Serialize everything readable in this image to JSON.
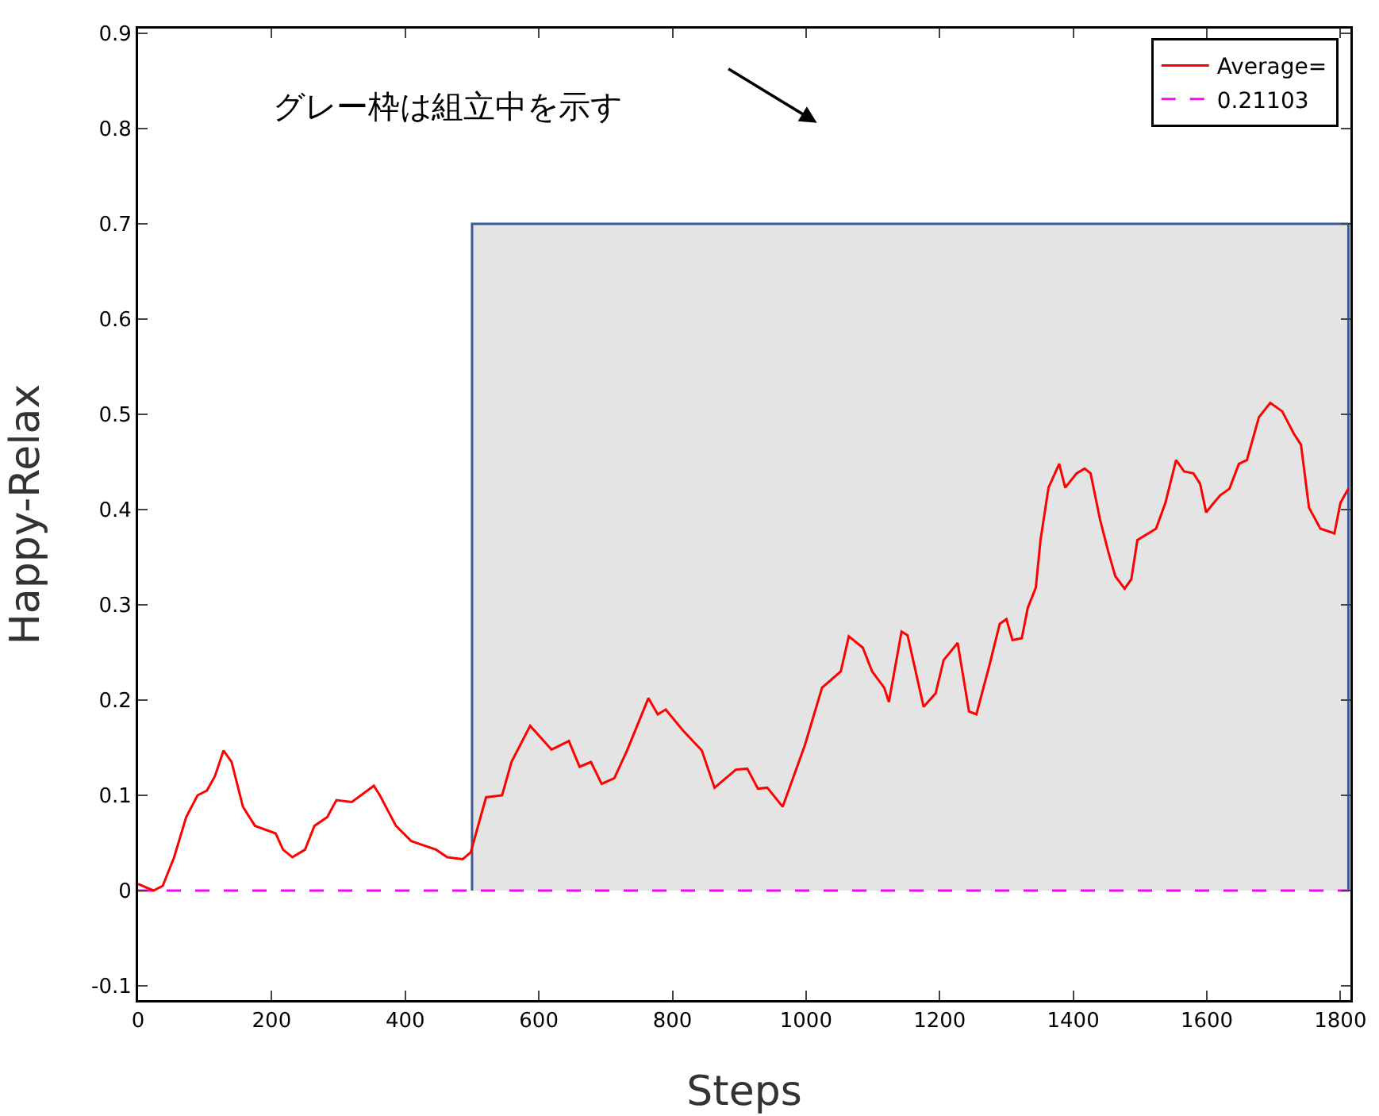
{
  "chart_data": {
    "type": "line",
    "xlabel": "Steps",
    "ylabel": "Happy-Relax",
    "xlim": [
      0,
      1815
    ],
    "xticks": [
      0,
      200,
      400,
      600,
      800,
      1000,
      1200,
      1400,
      1600,
      1800
    ],
    "ylim": [
      -0.115,
      0.905
    ],
    "yticks": [
      -0.1,
      0,
      0.1,
      0.2,
      0.3,
      0.4,
      0.5,
      0.6,
      0.7,
      0.8,
      0.9
    ],
    "grid": false,
    "legend": "top right",
    "marker": "none",
    "annotations": [
      "グレー枠は組立中を示す"
    ],
    "series": [
      {
        "type": "area",
        "color": "#e4e4e4",
        "x": [
          500,
          500,
          1812,
          1812
        ],
        "values": [
          0,
          0.7,
          0.7,
          0
        ]
      },
      {
        "name": "0.21103",
        "color": "#ff00ff",
        "line_style": "dashed",
        "x": [
          0,
          1812
        ],
        "values": [
          0,
          0
        ]
      },
      {
        "name": "Average=",
        "color": "#ff0000",
        "line_style": "solid",
        "x": [
          0,
          23,
          37,
          54,
          72,
          89,
          103,
          115,
          128,
          140,
          157,
          175,
          206,
          217,
          231,
          250,
          264,
          283,
          297,
          320,
          353,
          362,
          386,
          409,
          446,
          463,
          486,
          498,
          521,
          545,
          559,
          587,
          619,
          645,
          661,
          678,
          694,
          713,
          732,
          764,
          778,
          790,
          816,
          844,
          863,
          895,
          912,
          928,
          942,
          965,
          998,
          1024,
          1052,
          1064,
          1085,
          1099,
          1117,
          1124,
          1143,
          1152,
          1176,
          1194,
          1206,
          1227,
          1244,
          1255,
          1274,
          1290,
          1300,
          1309,
          1323,
          1332,
          1344,
          1351,
          1363,
          1379,
          1388,
          1405,
          1417,
          1426,
          1440,
          1452,
          1463,
          1477,
          1487,
          1496,
          1524,
          1538,
          1554,
          1566,
          1580,
          1590,
          1599,
          1608,
          1620,
          1634,
          1648,
          1660,
          1678,
          1695,
          1713,
          1730,
          1741,
          1753,
          1770,
          1791,
          1800,
          1812
        ],
        "values": [
          0.007,
          0,
          0.005,
          0.035,
          0.077,
          0.1,
          0.105,
          0.12,
          0.147,
          0.135,
          0.088,
          0.068,
          0.06,
          0.043,
          0.035,
          0.043,
          0.068,
          0.077,
          0.095,
          0.093,
          0.11,
          0.1,
          0.068,
          0.052,
          0.043,
          0.035,
          0.033,
          0.04,
          0.098,
          0.1,
          0.135,
          0.173,
          0.148,
          0.157,
          0.13,
          0.135,
          0.112,
          0.118,
          0.147,
          0.202,
          0.185,
          0.19,
          0.168,
          0.147,
          0.108,
          0.127,
          0.128,
          0.107,
          0.108,
          0.088,
          0.152,
          0.213,
          0.23,
          0.267,
          0.255,
          0.23,
          0.213,
          0.198,
          0.272,
          0.268,
          0.193,
          0.207,
          0.242,
          0.26,
          0.188,
          0.185,
          0.235,
          0.28,
          0.285,
          0.263,
          0.265,
          0.297,
          0.318,
          0.368,
          0.423,
          0.448,
          0.423,
          0.438,
          0.443,
          0.438,
          0.39,
          0.357,
          0.33,
          0.317,
          0.327,
          0.368,
          0.38,
          0.407,
          0.452,
          0.44,
          0.438,
          0.427,
          0.397,
          0.405,
          0.415,
          0.422,
          0.448,
          0.452,
          0.497,
          0.512,
          0.503,
          0.48,
          0.468,
          0.402,
          0.38,
          0.375,
          0.407,
          0.422
        ]
      }
    ]
  }
}
